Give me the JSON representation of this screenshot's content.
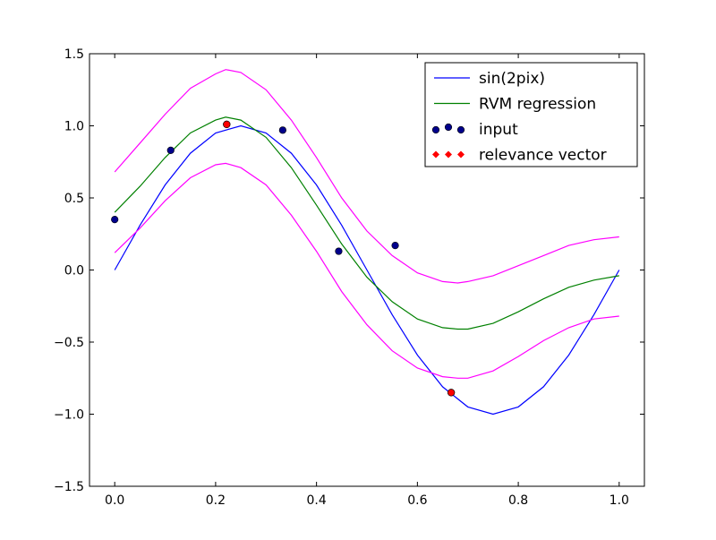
{
  "chart_data": {
    "type": "line",
    "xlim": [
      -0.05,
      1.05
    ],
    "ylim": [
      -1.5,
      1.5
    ],
    "x_ticks": [
      0.0,
      0.2,
      0.4,
      0.6,
      0.8,
      1.0
    ],
    "x_tick_labels": [
      "0.0",
      "0.2",
      "0.4",
      "0.6",
      "0.8",
      "1.0"
    ],
    "y_ticks": [
      -1.5,
      -1.0,
      -0.5,
      0.0,
      0.5,
      1.0,
      1.5
    ],
    "y_tick_labels": [
      "−1.5",
      "−1.0",
      "−0.5",
      "0.0",
      "0.5",
      "1.0",
      "1.5"
    ],
    "grid": false,
    "legend_position": "top-right",
    "series": [
      {
        "name": "sin(2pix)",
        "kind": "line",
        "color": "#0000ff",
        "x": [
          0.0,
          0.05,
          0.1,
          0.15,
          0.2,
          0.25,
          0.3,
          0.35,
          0.4,
          0.45,
          0.5,
          0.55,
          0.6,
          0.65,
          0.7,
          0.75,
          0.8,
          0.85,
          0.9,
          0.95,
          1.0
        ],
        "y": [
          0.0,
          0.31,
          0.59,
          0.81,
          0.95,
          1.0,
          0.95,
          0.81,
          0.59,
          0.31,
          0.0,
          -0.31,
          -0.59,
          -0.81,
          -0.95,
          -1.0,
          -0.95,
          -0.81,
          -0.59,
          -0.31,
          0.0
        ]
      },
      {
        "name": "RVM regression",
        "kind": "line",
        "color": "#008000",
        "x": [
          0.0,
          0.05,
          0.1,
          0.15,
          0.2,
          0.22,
          0.25,
          0.3,
          0.35,
          0.4,
          0.45,
          0.5,
          0.55,
          0.6,
          0.65,
          0.68,
          0.7,
          0.75,
          0.8,
          0.85,
          0.9,
          0.95,
          1.0
        ],
        "y": [
          0.4,
          0.58,
          0.78,
          0.95,
          1.04,
          1.06,
          1.04,
          0.92,
          0.71,
          0.45,
          0.18,
          -0.05,
          -0.22,
          -0.34,
          -0.4,
          -0.41,
          -0.41,
          -0.37,
          -0.29,
          -0.2,
          -0.12,
          -0.07,
          -0.04
        ]
      },
      {
        "name": "upper band",
        "kind": "band",
        "color": "#ff00ff",
        "x": [
          0.0,
          0.05,
          0.1,
          0.15,
          0.2,
          0.22,
          0.25,
          0.3,
          0.35,
          0.4,
          0.45,
          0.5,
          0.55,
          0.6,
          0.65,
          0.68,
          0.7,
          0.75,
          0.8,
          0.85,
          0.9,
          0.95,
          1.0
        ],
        "y": [
          0.68,
          0.88,
          1.08,
          1.26,
          1.36,
          1.39,
          1.37,
          1.25,
          1.04,
          0.78,
          0.5,
          0.27,
          0.1,
          -0.02,
          -0.08,
          -0.09,
          -0.08,
          -0.04,
          0.03,
          0.1,
          0.17,
          0.21,
          0.23
        ]
      },
      {
        "name": "lower band",
        "kind": "band",
        "color": "#ff00ff",
        "x": [
          0.0,
          0.05,
          0.1,
          0.15,
          0.2,
          0.22,
          0.25,
          0.3,
          0.35,
          0.4,
          0.45,
          0.5,
          0.55,
          0.6,
          0.65,
          0.68,
          0.7,
          0.75,
          0.8,
          0.85,
          0.9,
          0.95,
          1.0
        ],
        "y": [
          0.12,
          0.29,
          0.48,
          0.64,
          0.73,
          0.74,
          0.71,
          0.59,
          0.38,
          0.13,
          -0.15,
          -0.38,
          -0.56,
          -0.68,
          -0.74,
          -0.75,
          -0.75,
          -0.7,
          -0.6,
          -0.49,
          -0.4,
          -0.34,
          -0.32
        ]
      },
      {
        "name": "input",
        "kind": "scatter",
        "color": "#00008b",
        "x": [
          0.0,
          0.111,
          0.222,
          0.333,
          0.444,
          0.556,
          0.667
        ],
        "y": [
          0.35,
          0.83,
          1.01,
          0.97,
          0.13,
          0.17,
          -0.85
        ]
      },
      {
        "name": "relevance vector",
        "kind": "scatter",
        "color": "#ff0000",
        "x": [
          0.222,
          0.667
        ],
        "y": [
          1.01,
          -0.85
        ]
      }
    ],
    "legend": [
      "sin(2pix)",
      "RVM regression",
      "input",
      "relevance vector"
    ]
  }
}
